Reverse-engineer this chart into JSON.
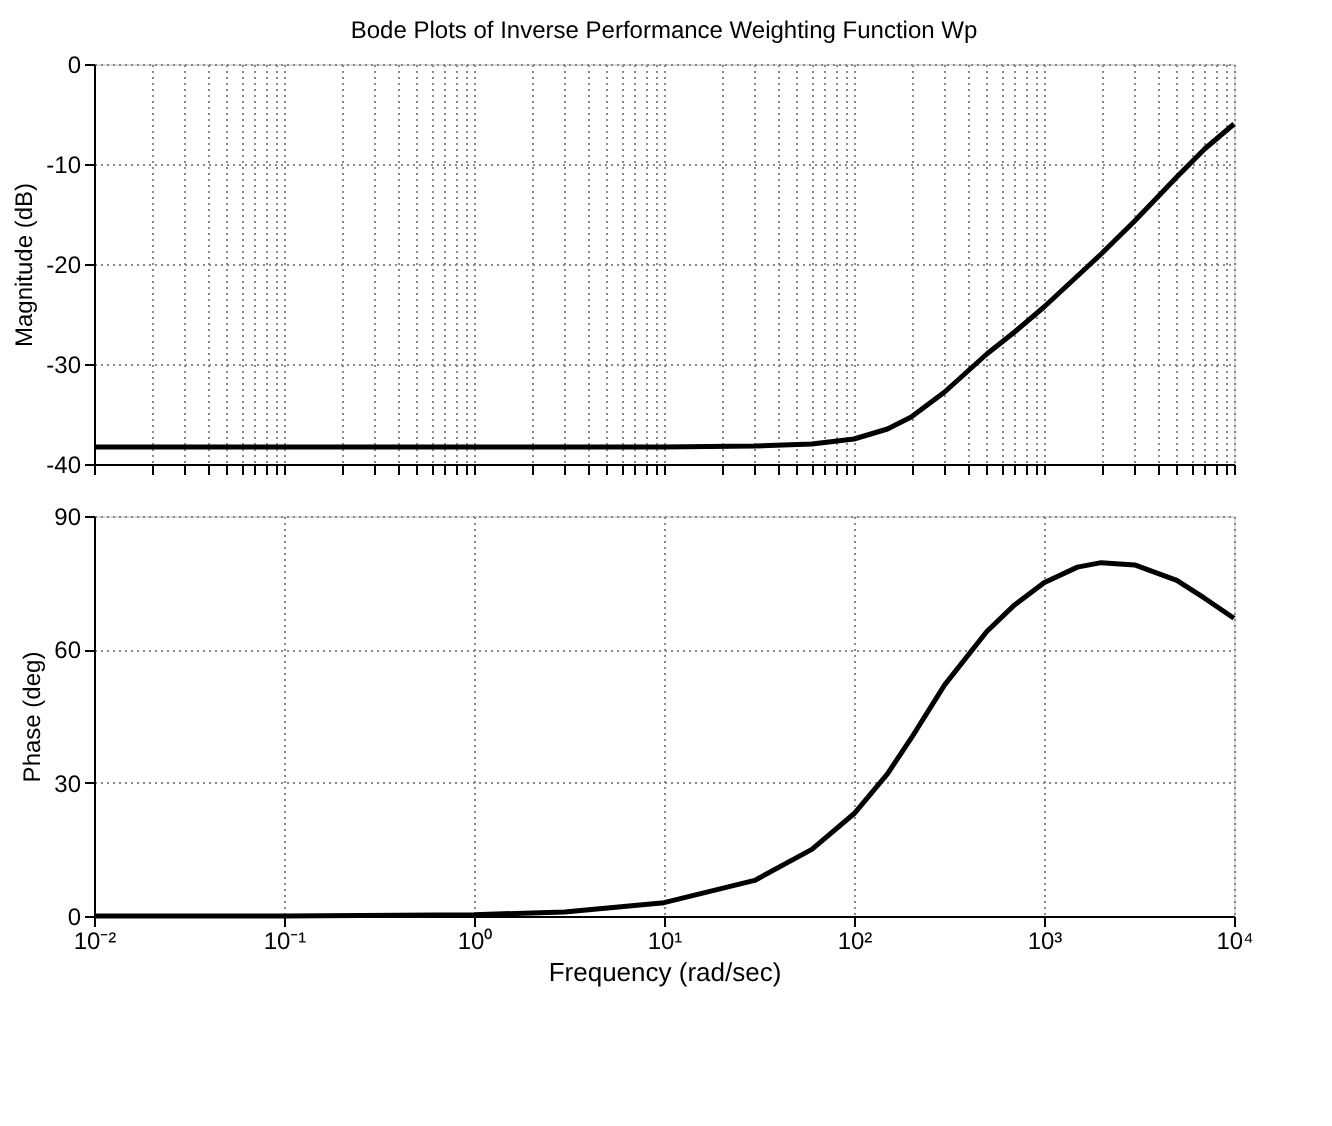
{
  "chart_data": [
    {
      "type": "line",
      "title": "Bode Plots of Inverse Performance Weighting Function Wp",
      "ylabel": "Magnitude (dB)",
      "log": "x",
      "grid": true,
      "line_style": "solid",
      "marker": "none",
      "tick_labels": "y",
      "x": [
        0.01,
        0.1,
        1,
        10,
        30,
        60,
        100,
        150,
        200,
        300,
        500,
        700,
        1000,
        1500,
        2000,
        3000,
        5000,
        7000,
        10000
      ],
      "series": [
        {
          "color": "#000000",
          "values": [
            -38.3,
            -38.3,
            -38.3,
            -38.3,
            -38.2,
            -38.0,
            -37.5,
            -36.5,
            -35.3,
            -32.8,
            -29.0,
            -26.8,
            -24.3,
            -21.2,
            -19.0,
            -15.7,
            -11.3,
            -8.5,
            -6.0
          ]
        }
      ],
      "xlim": [
        0.01,
        10000
      ],
      "ylim": [
        -40,
        0
      ],
      "yticks": [
        -40,
        -30,
        -20,
        -10,
        0
      ],
      "xticks": [
        0.01,
        0.02,
        0.03,
        0.04,
        0.05,
        0.06,
        0.07,
        0.08,
        0.09,
        0.1,
        0.2,
        0.3,
        0.4,
        0.5,
        0.6,
        0.7,
        0.8,
        0.9,
        1,
        2,
        3,
        4,
        5,
        6,
        7,
        8,
        9,
        10,
        20,
        30,
        40,
        50,
        60,
        70,
        80,
        90,
        100,
        200,
        300,
        400,
        500,
        600,
        700,
        800,
        900,
        1000,
        2000,
        3000,
        4000,
        5000,
        6000,
        7000,
        8000,
        9000,
        10000
      ]
    },
    {
      "type": "line",
      "xlabel": "Frequency  (rad/sec)",
      "ylabel": "Phase (deg)",
      "log": "x",
      "grid": true,
      "line_style": "solid",
      "marker": "none",
      "x": [
        0.01,
        0.1,
        1,
        3,
        10,
        30,
        60,
        100,
        150,
        200,
        300,
        500,
        700,
        1000,
        1500,
        2000,
        3000,
        5000,
        7000,
        10000
      ],
      "series": [
        {
          "color": "#000000",
          "values": [
            0,
            0,
            0.3,
            0.9,
            3,
            8,
            15,
            23,
            32,
            40,
            52,
            64,
            70,
            75,
            78.5,
            79.5,
            79,
            75.5,
            71.5,
            67
          ]
        }
      ],
      "xlim": [
        0.01,
        10000
      ],
      "ylim": [
        0,
        90
      ],
      "yticks": [
        0,
        30,
        60,
        90
      ],
      "xticks": [
        {
          "value": 0.01,
          "label": "10⁻²"
        },
        {
          "value": 0.1,
          "label": "10⁻¹"
        },
        {
          "value": 1,
          "label": "10⁰"
        },
        {
          "value": 10,
          "label": "10¹"
        },
        {
          "value": 100,
          "label": "10²"
        },
        {
          "value": 1000,
          "label": "10³"
        },
        {
          "value": 10000,
          "label": "10⁴"
        }
      ]
    }
  ]
}
